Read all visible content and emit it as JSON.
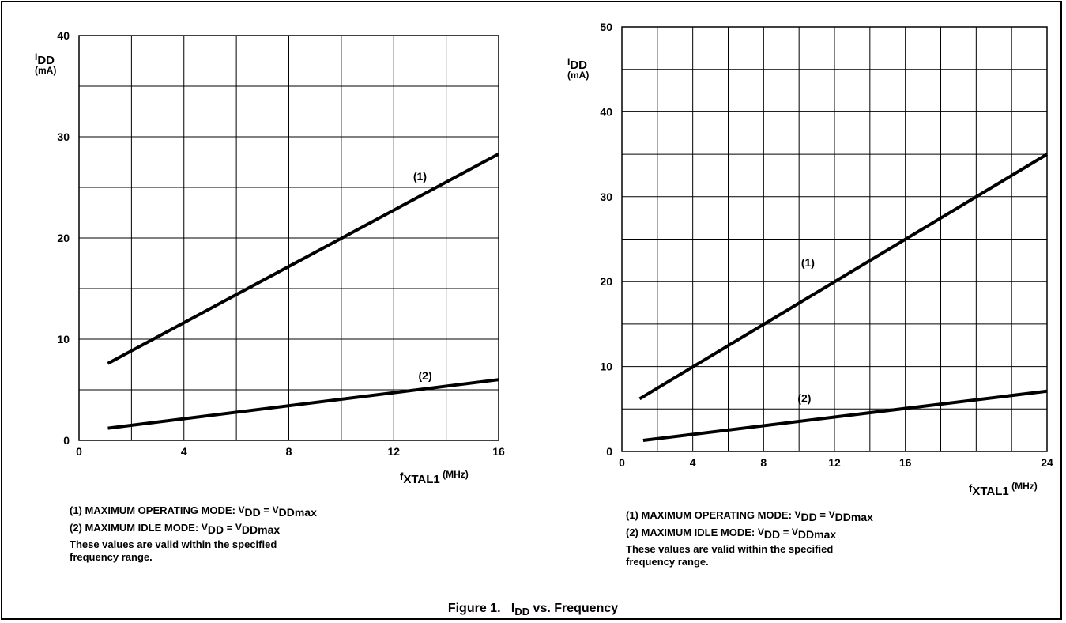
{
  "caption": {
    "figure_label": "Figure 1.",
    "i": "I",
    "sub": "DD",
    "rest": "vs. Frequency"
  },
  "chart_data": [
    {
      "type": "line",
      "title": "",
      "ylabel_main": "I",
      "ylabel_sub": "DD",
      "ylabel_unit": "(mA)",
      "xlabel_main": "f",
      "xlabel_sub": "XTAL1",
      "xlabel_unit": "(MHz)",
      "xlim": [
        0,
        16
      ],
      "ylim": [
        0,
        40
      ],
      "x_ticks": [
        0,
        4,
        8,
        12,
        16
      ],
      "y_ticks": [
        0,
        10,
        20,
        30,
        40
      ],
      "x_grid_step": 2,
      "y_grid_step": 5,
      "grid": true,
      "series": [
        {
          "name": "(1)",
          "x": [
            1.1,
            16
          ],
          "values": [
            7.6,
            28.3
          ],
          "label_at": [
            13,
            25.7
          ]
        },
        {
          "name": "(2)",
          "x": [
            1.1,
            16
          ],
          "values": [
            1.2,
            6.0
          ],
          "label_at": [
            13.2,
            6.0
          ]
        }
      ],
      "notes": {
        "line1_text": "(1) MAXIMUM OPERATING MODE: ",
        "line1_v1": "V",
        "line1_v1_sub": "DD",
        "line1_eq": " =  ",
        "line1_v2": "V",
        "line1_v2_sub": "DDmax",
        "line2_text": "(2) MAXIMUM IDLE MODE: ",
        "line2_v1": "V",
        "line2_v1_sub": "DD",
        "line2_eq": " = ",
        "line2_v2": "V",
        "line2_v2_sub": "DDmax",
        "line3": "These values are valid within the specified",
        "line4": "frequency range."
      }
    },
    {
      "type": "line",
      "title": "",
      "ylabel_main": "I",
      "ylabel_sub": "DD",
      "ylabel_unit": "(mA)",
      "xlabel_main": "f",
      "xlabel_sub": "XTAL1",
      "xlabel_unit": "(MHz)",
      "xlim": [
        0,
        24
      ],
      "ylim": [
        0,
        50
      ],
      "x_ticks": [
        0,
        4,
        8,
        12,
        16,
        24
      ],
      "y_ticks": [
        0,
        10,
        20,
        30,
        40,
        50
      ],
      "x_grid_step": 2,
      "y_grid_step": 5,
      "grid": true,
      "series": [
        {
          "name": "(1)",
          "x": [
            1,
            24
          ],
          "values": [
            6.2,
            35.0
          ],
          "label_at": [
            10.5,
            21.8
          ]
        },
        {
          "name": "(2)",
          "x": [
            1.2,
            24
          ],
          "values": [
            1.3,
            7.1
          ],
          "label_at": [
            10.3,
            5.8
          ]
        }
      ],
      "notes": {
        "line1_text": "(1) MAXIMUM OPERATING MODE: ",
        "line1_v1": "V",
        "line1_v1_sub": "DD",
        "line1_eq": " =  ",
        "line1_v2": "V",
        "line1_v2_sub": "DDmax",
        "line2_text": "(2) MAXIMUM IDLE MODE: ",
        "line2_v1": "V",
        "line2_v1_sub": "DD",
        "line2_eq": " = ",
        "line2_v2": "V",
        "line2_v2_sub": "DDmax",
        "line3": "These values are valid within the specified",
        "line4": "frequency range."
      }
    }
  ]
}
